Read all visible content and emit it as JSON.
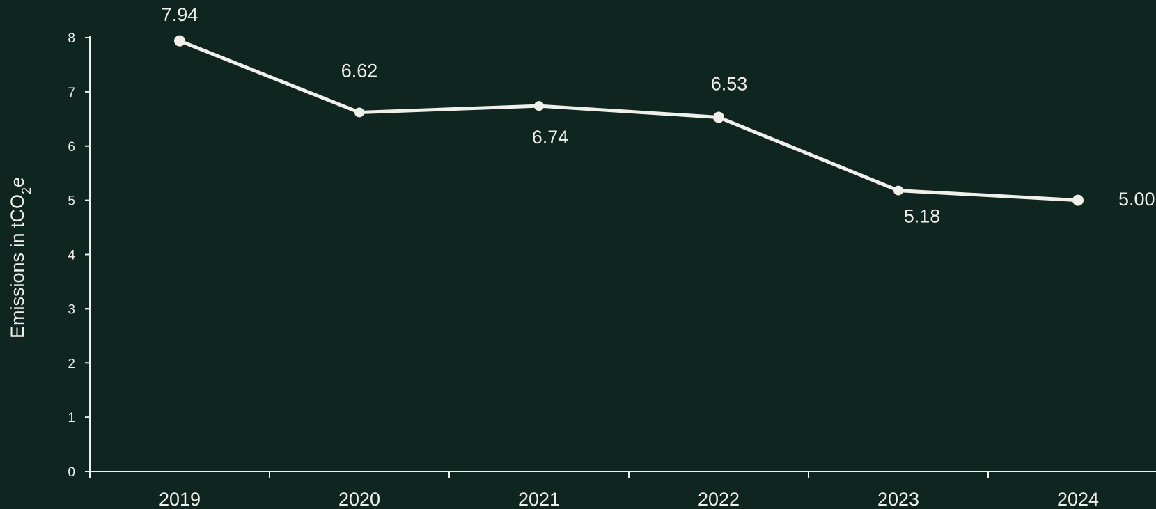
{
  "chart_data": {
    "type": "line",
    "title": "",
    "xlabel": "",
    "ylabel": "Emissions in tCO₂e",
    "ylabel_parts": {
      "main": "Emissions in tCO",
      "subscript": "2",
      "suffix": "e"
    },
    "x": [
      "2019",
      "2020",
      "2021",
      "2022",
      "2023",
      "2024"
    ],
    "values": [
      7.94,
      6.62,
      6.74,
      6.53,
      5.18,
      5.0
    ],
    "data_labels": [
      "7.94",
      "6.62",
      "6.74",
      "6.53",
      "5.18",
      "5.00"
    ],
    "y_ticks": [
      "0",
      "1",
      "2",
      "3",
      "4",
      "5",
      "6",
      "7",
      "8"
    ],
    "ylim": [
      0,
      8
    ],
    "grid": false,
    "legend": "none",
    "colors": {
      "background": "#0f2620",
      "line": "#f1efe9",
      "text": "#f1efe9"
    }
  }
}
